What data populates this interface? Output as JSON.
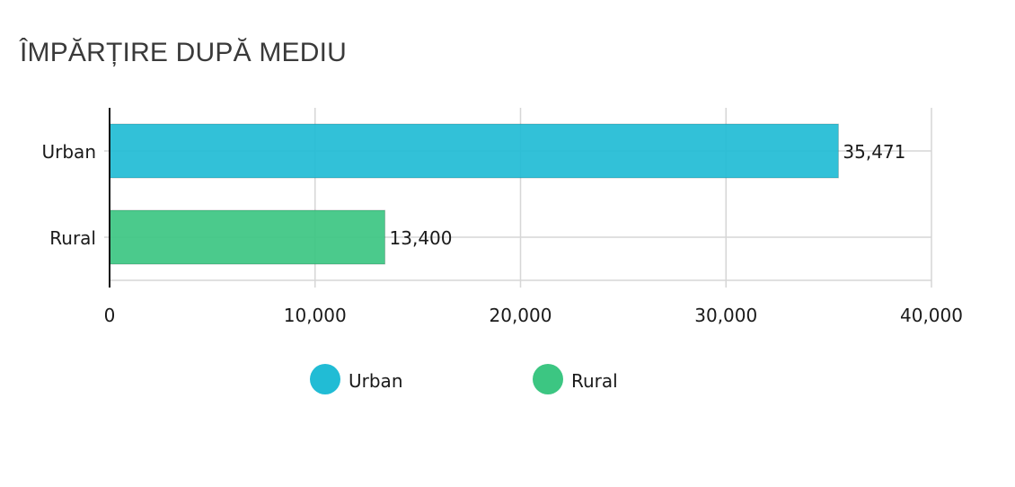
{
  "title": "ÎMPĂRȚIRE DUPĂ MEDIU",
  "chart_data": {
    "type": "bar",
    "orientation": "horizontal",
    "categories": [
      "Urban",
      "Rural"
    ],
    "values": [
      35471,
      13400
    ],
    "value_labels": [
      "35,471",
      "13,400"
    ],
    "colors": [
      "#21bcd5",
      "#3cc682"
    ],
    "xlim": [
      0,
      40000
    ],
    "xticks": [
      0,
      10000,
      20000,
      30000,
      40000
    ],
    "xtick_labels": [
      "0",
      "10,000",
      "20,000",
      "30,000",
      "40,000"
    ],
    "grid": true,
    "legend_position": "bottom",
    "legend": [
      {
        "label": "Urban",
        "color": "#21bcd5"
      },
      {
        "label": "Rural",
        "color": "#3cc682"
      }
    ]
  }
}
